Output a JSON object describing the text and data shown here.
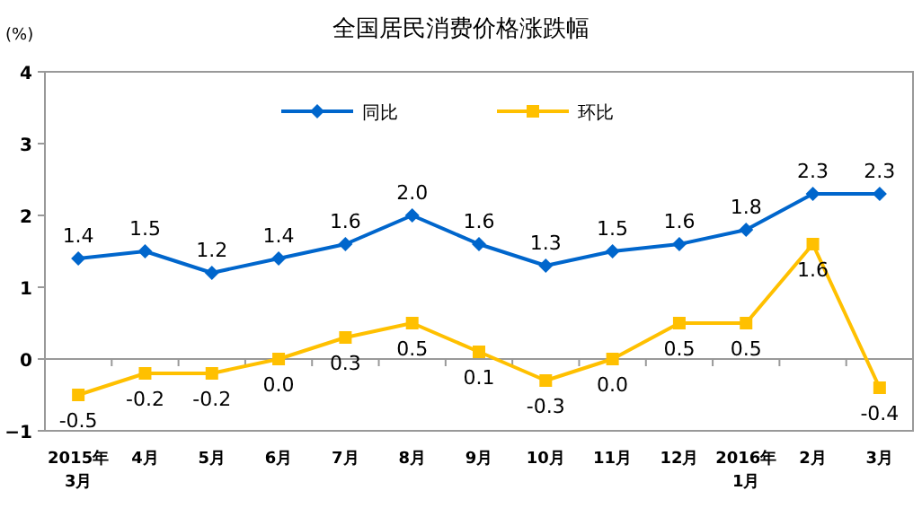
{
  "chart_data": {
    "type": "line",
    "title": "全国居民消费价格涨跌幅",
    "ylabel": "(%)",
    "categories": [
      "2015年\n3月",
      "4月",
      "5月",
      "6月",
      "7月",
      "8月",
      "9月",
      "10月",
      "11月",
      "12月",
      "2016年\n1月",
      "2月",
      "3月"
    ],
    "series": [
      {
        "name": "同比",
        "color": "#0066cc",
        "marker": "diamond",
        "values": [
          1.4,
          1.5,
          1.2,
          1.4,
          1.6,
          2.0,
          1.6,
          1.3,
          1.5,
          1.6,
          1.8,
          2.3,
          2.3
        ],
        "value_labels": [
          "1.4",
          "1.5",
          "1.2",
          "1.4",
          "1.6",
          "2.0",
          "1.6",
          "1.3",
          "1.5",
          "1.6",
          "1.8",
          "2.3",
          "2.3"
        ]
      },
      {
        "name": "环比",
        "color": "#ffc000",
        "marker": "square",
        "values": [
          -0.5,
          -0.2,
          -0.2,
          0.0,
          0.3,
          0.5,
          0.1,
          -0.3,
          0.0,
          0.5,
          0.5,
          1.6,
          -0.4
        ],
        "value_labels": [
          "-0.5",
          "-0.2",
          "-0.2",
          "0.0",
          "0.3",
          "0.5",
          "0.1",
          "-0.3",
          "0.0",
          "0.5",
          "0.5",
          "1.6",
          "-0.4"
        ]
      }
    ],
    "ylim": [
      -1,
      4
    ],
    "yticks": [
      -1,
      0,
      1,
      2,
      3,
      4
    ],
    "legend": "top"
  }
}
